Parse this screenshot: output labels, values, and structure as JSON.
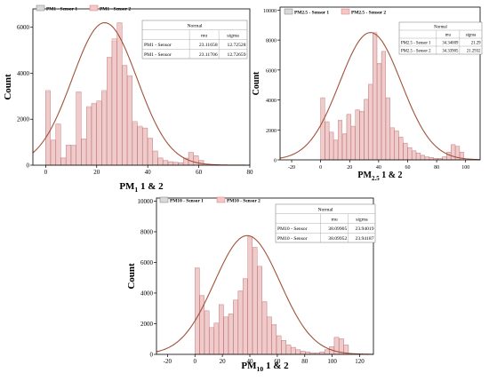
{
  "colors": {
    "sensor1_fill": "#d9d9d9",
    "sensor1_stroke": "#7a7a7a",
    "sensor2_fill": "#f6c6c6",
    "sensor2_stroke": "#d27a7a",
    "curve": "#a0523a",
    "axis": "#000000"
  },
  "chart_data": [
    {
      "type": "bar",
      "xlabel_main": "PM",
      "xlabel_sub": "1",
      "xlabel_tail": " 1 & 2",
      "ylabel": "Count",
      "xlim": [
        -5,
        80
      ],
      "ylim": [
        0,
        6800
      ],
      "xticks": [
        "0",
        "20",
        "40",
        "60",
        "80"
      ],
      "yticks": [
        "0",
        "2000",
        "4000",
        "6000"
      ],
      "legend": [
        "PM1 - Sensor 1",
        "PM1 - Sensor 2"
      ],
      "fit_table": {
        "title": "Normal",
        "header": [
          "",
          "mu",
          "sigma"
        ],
        "rows": [
          [
            "PM1 - Sensor",
            "23.11658",
            "12.72528"
          ],
          [
            "PM1 - Sensor",
            "23.11706",
            "12.72659"
          ]
        ]
      },
      "bin_width": 2,
      "bins": [
        {
          "x": 0,
          "s1": 3200,
          "s2": 3250
        },
        {
          "x": 2,
          "s1": 1050,
          "s2": 1100
        },
        {
          "x": 4,
          "s1": 1750,
          "s2": 1800
        },
        {
          "x": 6,
          "s1": 300,
          "s2": 320
        },
        {
          "x": 8,
          "s1": 850,
          "s2": 880
        },
        {
          "x": 10,
          "s1": 850,
          "s2": 870
        },
        {
          "x": 12,
          "s1": 3150,
          "s2": 3200
        },
        {
          "x": 14,
          "s1": 1100,
          "s2": 1150
        },
        {
          "x": 16,
          "s1": 2500,
          "s2": 2550
        },
        {
          "x": 18,
          "s1": 2650,
          "s2": 2700
        },
        {
          "x": 20,
          "s1": 2750,
          "s2": 2800
        },
        {
          "x": 22,
          "s1": 3200,
          "s2": 3250
        },
        {
          "x": 24,
          "s1": 4650,
          "s2": 4700
        },
        {
          "x": 26,
          "s1": 5400,
          "s2": 5500
        },
        {
          "x": 28,
          "s1": 6150,
          "s2": 6200
        },
        {
          "x": 30,
          "s1": 4300,
          "s2": 4350
        },
        {
          "x": 32,
          "s1": 3850,
          "s2": 3900
        },
        {
          "x": 34,
          "s1": 1850,
          "s2": 1900
        },
        {
          "x": 36,
          "s1": 1650,
          "s2": 1700
        },
        {
          "x": 38,
          "s1": 1600,
          "s2": 1620
        },
        {
          "x": 40,
          "s1": 1150,
          "s2": 1180
        },
        {
          "x": 42,
          "s1": 600,
          "s2": 620
        },
        {
          "x": 44,
          "s1": 300,
          "s2": 320
        },
        {
          "x": 46,
          "s1": 200,
          "s2": 210
        },
        {
          "x": 48,
          "s1": 150,
          "s2": 150
        },
        {
          "x": 50,
          "s1": 120,
          "s2": 120
        },
        {
          "x": 52,
          "s1": 100,
          "s2": 100
        },
        {
          "x": 54,
          "s1": 300,
          "s2": 310
        },
        {
          "x": 56,
          "s1": 550,
          "s2": 560
        },
        {
          "x": 58,
          "s1": 400,
          "s2": 410
        },
        {
          "x": 60,
          "s1": 200,
          "s2": 210
        }
      ],
      "normal_fit": {
        "mu": 23.11658,
        "sigma": 12.72528,
        "peak": 6200
      }
    },
    {
      "type": "bar",
      "xlabel_main": "PM",
      "xlabel_sub": "2.5",
      "xlabel_tail": " 1 & 2",
      "ylabel": "Count",
      "xlim": [
        -28,
        110
      ],
      "ylim": [
        0,
        10200
      ],
      "xticks": [
        "-20",
        "0",
        "20",
        "40",
        "60",
        "80",
        "100"
      ],
      "yticks": [
        "0",
        "2000",
        "4000",
        "6000",
        "8000",
        "10000"
      ],
      "legend": [
        "PM2.5 - Sensor 1",
        "PM2.5 - Sensor 2"
      ],
      "fit_table": {
        "title": "Normal",
        "header": [
          "",
          "mu",
          "sigma"
        ],
        "rows": [
          [
            "PM2.5 - Sensor 1",
            "34.34009",
            "21.29"
          ],
          [
            "PM2.5 - Sensor 2",
            "34.33905",
            "21.2932"
          ]
        ]
      },
      "bin_width": 3,
      "bins": [
        {
          "x": 0,
          "s1": 4100,
          "s2": 4150
        },
        {
          "x": 3,
          "s1": 2500,
          "s2": 2550
        },
        {
          "x": 6,
          "s1": 1800,
          "s2": 1850
        },
        {
          "x": 9,
          "s1": 1300,
          "s2": 1330
        },
        {
          "x": 12,
          "s1": 2600,
          "s2": 2650
        },
        {
          "x": 15,
          "s1": 1700,
          "s2": 1750
        },
        {
          "x": 18,
          "s1": 3000,
          "s2": 3050
        },
        {
          "x": 21,
          "s1": 2200,
          "s2": 2250
        },
        {
          "x": 24,
          "s1": 3300,
          "s2": 3350
        },
        {
          "x": 27,
          "s1": 3200,
          "s2": 3250
        },
        {
          "x": 30,
          "s1": 4000,
          "s2": 4050
        },
        {
          "x": 33,
          "s1": 5000,
          "s2": 5050
        },
        {
          "x": 36,
          "s1": 8400,
          "s2": 8500
        },
        {
          "x": 39,
          "s1": 6400,
          "s2": 6450
        },
        {
          "x": 42,
          "s1": 7200,
          "s2": 7250
        },
        {
          "x": 45,
          "s1": 4100,
          "s2": 4150
        },
        {
          "x": 48,
          "s1": 2100,
          "s2": 2150
        },
        {
          "x": 51,
          "s1": 1900,
          "s2": 1950
        },
        {
          "x": 54,
          "s1": 1500,
          "s2": 1520
        },
        {
          "x": 57,
          "s1": 1100,
          "s2": 1120
        },
        {
          "x": 60,
          "s1": 800,
          "s2": 820
        },
        {
          "x": 63,
          "s1": 600,
          "s2": 610
        },
        {
          "x": 66,
          "s1": 450,
          "s2": 460
        },
        {
          "x": 69,
          "s1": 300,
          "s2": 300
        },
        {
          "x": 72,
          "s1": 200,
          "s2": 200
        },
        {
          "x": 75,
          "s1": 150,
          "s2": 150
        },
        {
          "x": 78,
          "s1": 100,
          "s2": 100
        },
        {
          "x": 81,
          "s1": 100,
          "s2": 100
        },
        {
          "x": 84,
          "s1": 200,
          "s2": 200
        },
        {
          "x": 87,
          "s1": 500,
          "s2": 510
        },
        {
          "x": 90,
          "s1": 1000,
          "s2": 1020
        },
        {
          "x": 93,
          "s1": 900,
          "s2": 910
        },
        {
          "x": 96,
          "s1": 500,
          "s2": 510
        }
      ],
      "normal_fit": {
        "mu": 34.34009,
        "sigma": 21.29,
        "peak": 8500
      }
    },
    {
      "type": "bar",
      "xlabel_main": "PM",
      "xlabel_sub": "10",
      "xlabel_tail": " 1 & 2",
      "ylabel": "Count",
      "xlim": [
        -28,
        130
      ],
      "ylim": [
        0,
        10200
      ],
      "xticks": [
        "-20",
        "0",
        "20",
        "40",
        "60",
        "80",
        "100",
        "120"
      ],
      "yticks": [
        "0",
        "2000",
        "4000",
        "6000",
        "8000",
        "10000"
      ],
      "legend": [
        "PM10 - Sensor 1",
        "PM10 - Sensor 2"
      ],
      "fit_table": {
        "title": "Normal",
        "header": [
          "",
          "mu",
          "sigma"
        ],
        "rows": [
          [
            "PM10 - Sensor",
            "38.09905",
            "23.94019"
          ],
          [
            "PM10 - Sensor",
            "38.09952",
            "23.94187"
          ]
        ]
      },
      "bin_width": 3.5,
      "bins": [
        {
          "x": 0,
          "s1": 5600,
          "s2": 5650
        },
        {
          "x": 3.5,
          "s1": 3800,
          "s2": 3850
        },
        {
          "x": 7,
          "s1": 2800,
          "s2": 2850
        },
        {
          "x": 10.5,
          "s1": 1700,
          "s2": 1750
        },
        {
          "x": 14,
          "s1": 2000,
          "s2": 2050
        },
        {
          "x": 17.5,
          "s1": 3200,
          "s2": 3250
        },
        {
          "x": 21,
          "s1": 2400,
          "s2": 2450
        },
        {
          "x": 24.5,
          "s1": 2600,
          "s2": 2650
        },
        {
          "x": 28,
          "s1": 3500,
          "s2": 3550
        },
        {
          "x": 31.5,
          "s1": 4100,
          "s2": 4150
        },
        {
          "x": 35,
          "s1": 4900,
          "s2": 4950
        },
        {
          "x": 38.5,
          "s1": 7600,
          "s2": 7700
        },
        {
          "x": 42,
          "s1": 6900,
          "s2": 7000
        },
        {
          "x": 45.5,
          "s1": 5700,
          "s2": 5750
        },
        {
          "x": 49,
          "s1": 3400,
          "s2": 3450
        },
        {
          "x": 52.5,
          "s1": 2400,
          "s2": 2450
        },
        {
          "x": 56,
          "s1": 1900,
          "s2": 1950
        },
        {
          "x": 59.5,
          "s1": 1200,
          "s2": 1220
        },
        {
          "x": 63,
          "s1": 900,
          "s2": 910
        },
        {
          "x": 66.5,
          "s1": 600,
          "s2": 610
        },
        {
          "x": 70,
          "s1": 450,
          "s2": 460
        },
        {
          "x": 73.5,
          "s1": 300,
          "s2": 300
        },
        {
          "x": 77,
          "s1": 200,
          "s2": 200
        },
        {
          "x": 80.5,
          "s1": 150,
          "s2": 150
        },
        {
          "x": 84,
          "s1": 100,
          "s2": 100
        },
        {
          "x": 87.5,
          "s1": 100,
          "s2": 100
        },
        {
          "x": 91,
          "s1": 150,
          "s2": 150
        },
        {
          "x": 94.5,
          "s1": 300,
          "s2": 300
        },
        {
          "x": 98,
          "s1": 500,
          "s2": 510
        },
        {
          "x": 101.5,
          "s1": 1100,
          "s2": 1120
        },
        {
          "x": 105,
          "s1": 1000,
          "s2": 1020
        },
        {
          "x": 108.5,
          "s1": 600,
          "s2": 610
        }
      ],
      "normal_fit": {
        "mu": 38.09905,
        "sigma": 23.94019,
        "peak": 7750
      }
    }
  ]
}
